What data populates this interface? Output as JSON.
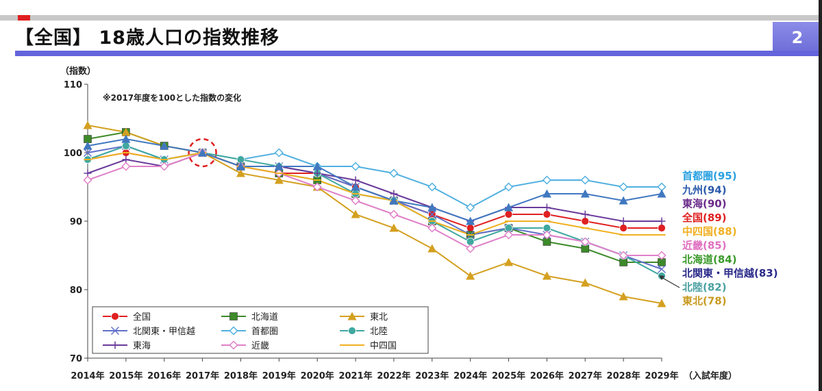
{
  "header": {
    "title": "【全国】 18歳人口の指数推移",
    "page_number": "2"
  },
  "chart_data": {
    "type": "line",
    "ylabel": "（指数）",
    "xlabel": "（入試年度）",
    "annotation": "※2017年度を100とした指数の変化",
    "ylim": [
      70,
      110
    ],
    "yticks": [
      70,
      80,
      90,
      100,
      110
    ],
    "x": [
      "2014年",
      "2015年",
      "2016年",
      "2017年",
      "2018年",
      "2019年",
      "2020年",
      "2021年",
      "2022年",
      "2023年",
      "2024年",
      "2025年",
      "2026年",
      "2027年",
      "2028年",
      "2029年"
    ],
    "highlight_year": "2017年",
    "grid": false,
    "series": [
      {
        "name": "全国",
        "color": "#e02020",
        "marker": "circle",
        "values": [
          99,
          100,
          99,
          100,
          98,
          97,
          97,
          95,
          93,
          91,
          89,
          91,
          91,
          90,
          89,
          89
        ],
        "end_label": "全国(89)"
      },
      {
        "name": "北海道",
        "color": "#3d8a2a",
        "marker": "square",
        "values": [
          102,
          103,
          101,
          100,
          98,
          97,
          96,
          94,
          93,
          90,
          88,
          89,
          87,
          86,
          84,
          84
        ],
        "end_label": "北海道(84)"
      },
      {
        "name": "東北",
        "color": "#d4a020",
        "marker": "triangle",
        "values": [
          104,
          103,
          101,
          100,
          97,
          96,
          95,
          91,
          89,
          86,
          82,
          84,
          82,
          81,
          79,
          78
        ],
        "end_label": "東北(78)"
      },
      {
        "name": "北関東・甲信越",
        "color": "#6070c8",
        "marker": "x",
        "values": [
          100,
          101,
          99,
          100,
          98,
          98,
          97,
          95,
          93,
          91,
          88,
          89,
          88,
          87,
          85,
          83
        ],
        "end_label": "北関東・甲信越(83)"
      },
      {
        "name": "首都圏",
        "color": "#50b0e0",
        "marker": "diamond",
        "values": [
          99,
          101,
          99,
          100,
          99,
          100,
          98,
          98,
          97,
          95,
          92,
          95,
          96,
          96,
          95,
          95
        ],
        "end_label": "首都圏(95)"
      },
      {
        "name": "北陸",
        "color": "#40a8a0",
        "marker": "circle",
        "values": [
          99,
          101,
          99,
          100,
          99,
          98,
          97,
          94,
          93,
          90,
          87,
          89,
          89,
          87,
          85,
          82
        ],
        "end_label": "北陸(82)"
      },
      {
        "name": "東海",
        "color": "#6a3a9a",
        "marker": "plus",
        "values": [
          97,
          99,
          98,
          100,
          98,
          98,
          97,
          96,
          94,
          92,
          90,
          92,
          92,
          91,
          90,
          90
        ],
        "end_label": "東海(90)"
      },
      {
        "name": "近畿",
        "color": "#e080c8",
        "marker": "diamond",
        "values": [
          96,
          98,
          98,
          100,
          98,
          97,
          95,
          93,
          91,
          89,
          86,
          88,
          88,
          87,
          85,
          85
        ],
        "end_label": "近畿(85)"
      },
      {
        "name": "中四国",
        "color": "#f0b020",
        "marker": "dash",
        "values": [
          99,
          100,
          99,
          100,
          98,
          97,
          96,
          94,
          93,
          90,
          88,
          90,
          90,
          89,
          88,
          88
        ],
        "end_label": "中四国(88)"
      },
      {
        "name": "九州",
        "color": "#4078c0",
        "marker": "triangle",
        "values": [
          101,
          102,
          101,
          100,
          98,
          98,
          98,
          95,
          93,
          92,
          90,
          92,
          94,
          94,
          93,
          94
        ],
        "end_label": "九州(94)"
      }
    ],
    "end_label_order": [
      "首都圏",
      "九州",
      "東海",
      "全国",
      "中四国",
      "近畿",
      "北海道",
      "北関東・甲信越",
      "北陸",
      "東北"
    ],
    "end_label_colors": {
      "首都圏": "#2aa0e0",
      "九州": "#2a5aaa",
      "東海": "#6a2a8a",
      "全国": "#e02020",
      "中四国": "#f0b020",
      "近畿": "#e070c0",
      "北海道": "#3a9a2a",
      "北関東・甲信越": "#2a2a8a",
      "北陸": "#4aa0a0",
      "東北": "#c89a20"
    },
    "legend_order": [
      "全国",
      "北海道",
      "東北",
      "北関東・甲信越",
      "首都圏",
      "北陸",
      "東海",
      "近畿",
      "中四国"
    ],
    "legend_position": "bottom-left"
  }
}
